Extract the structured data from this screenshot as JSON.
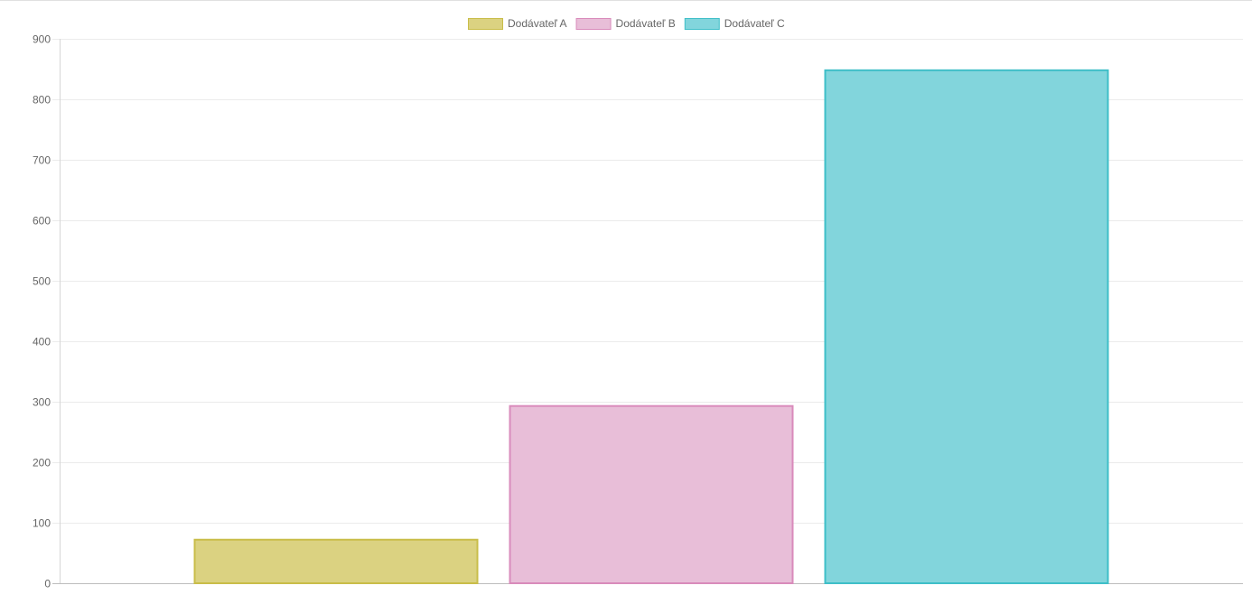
{
  "chart_data": {
    "type": "bar",
    "title": "",
    "xlabel": "",
    "ylabel": "",
    "ylim": [
      0,
      900
    ],
    "y_ticks": [
      0,
      100,
      200,
      300,
      400,
      500,
      600,
      700,
      800,
      900
    ],
    "grid": true,
    "legend_position": "top-center",
    "series": [
      {
        "name": "Dodávateľ A",
        "value": 72,
        "fill": "#dbd281",
        "stroke": "#c9bd49"
      },
      {
        "name": "Dodávateľ B",
        "value": 293,
        "fill": "#e8bed8",
        "stroke": "#d98bbb"
      },
      {
        "name": "Dodávateľ C",
        "value": 848,
        "fill": "#82d5dc",
        "stroke": "#3fbfc8"
      }
    ]
  }
}
